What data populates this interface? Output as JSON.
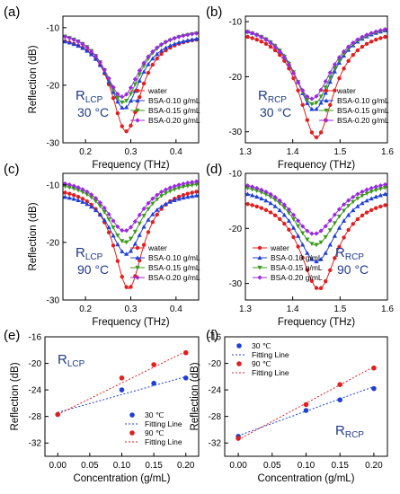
{
  "colors": {
    "red": "#e02020",
    "blue": "#1f3fd6",
    "green": "#3a9a1a",
    "purple": "#9a2ae0",
    "annot": "#1f3a8a"
  },
  "chart_data": [
    {
      "id": "a",
      "panel_label": "(a)",
      "type": "line",
      "xlabel": "Frequency (THz)",
      "ylabel": "Reflection (dB)",
      "xlim": [
        0.15,
        0.45
      ],
      "ylim": [
        -30,
        -8
      ],
      "xticks": [
        0.2,
        0.3,
        0.4
      ],
      "xtick_labels": [
        "0.2",
        "0.3",
        "0.4"
      ],
      "yticks": [
        -30,
        -20,
        -10
      ],
      "ytick_labels": [
        "-30",
        "-20",
        "-10"
      ],
      "annot_main": "R",
      "annot_sub": "LCP",
      "annot_temp": "30 °C",
      "legend_position": "bottom-right",
      "series": [
        {
          "name": "water",
          "color": "red",
          "marker": "circle",
          "f0": 0.29,
          "min": -28,
          "base": -11,
          "w": 0.04,
          "n": 31
        },
        {
          "name": "BSA-0.10 g/mL",
          "color": "blue",
          "marker": "triangle",
          "f0": 0.285,
          "min": -24,
          "base": -11,
          "w": 0.045,
          "n": 31
        },
        {
          "name": "BSA-0.15 g/mL",
          "color": "green",
          "marker": "triangle-down",
          "f0": 0.283,
          "min": -23,
          "base": -10,
          "w": 0.047,
          "n": 31
        },
        {
          "name": "BSA-0.20 g/mL",
          "color": "purple",
          "marker": "diamond",
          "f0": 0.281,
          "min": -22,
          "base": -10,
          "w": 0.049,
          "n": 31
        }
      ]
    },
    {
      "id": "b",
      "panel_label": "(b)",
      "type": "line",
      "xlabel": "Frequency (THz)",
      "ylabel": "",
      "xlim": [
        1.3,
        1.6
      ],
      "ylim": [
        -32,
        -9
      ],
      "xticks": [
        1.3,
        1.4,
        1.5,
        1.6
      ],
      "xtick_labels": [
        "1.3",
        "1.4",
        "1.5",
        "1.6"
      ],
      "yticks": [
        -30,
        -20,
        -10
      ],
      "ytick_labels": [
        "-30",
        "-20",
        "-10"
      ],
      "annot_main": "R",
      "annot_sub": "RCP",
      "annot_temp": "30 °C",
      "legend_position": "bottom-right",
      "series": [
        {
          "name": "water",
          "color": "red",
          "marker": "circle",
          "f0": 1.45,
          "min": -31,
          "base": -11,
          "w": 0.045,
          "n": 31
        },
        {
          "name": "BSA-0.10 g/mL",
          "color": "blue",
          "marker": "triangle",
          "f0": 1.445,
          "min": -26,
          "base": -10,
          "w": 0.05,
          "n": 31
        },
        {
          "name": "BSA-0.15 g/mL",
          "color": "green",
          "marker": "triangle-down",
          "f0": 1.443,
          "min": -25,
          "base": -10,
          "w": 0.052,
          "n": 31
        },
        {
          "name": "BSA-0.20 g/mL",
          "color": "purple",
          "marker": "diamond",
          "f0": 1.44,
          "min": -24,
          "base": -9.8,
          "w": 0.055,
          "n": 31
        }
      ]
    },
    {
      "id": "c",
      "panel_label": "(c)",
      "type": "line",
      "xlabel": "Frequency (THz)",
      "ylabel": "Reflection (dB)",
      "xlim": [
        0.15,
        0.45
      ],
      "ylim": [
        -30,
        -8
      ],
      "xticks": [
        0.2,
        0.3,
        0.4
      ],
      "xtick_labels": [
        "0.2",
        "0.3",
        "0.4"
      ],
      "yticks": [
        -30,
        -20,
        -10
      ],
      "ytick_labels": [
        "-30",
        "-20",
        "-10"
      ],
      "annot_main": "R",
      "annot_sub": "LCP",
      "annot_temp": "90 °C",
      "legend_position": "bottom-right",
      "series": [
        {
          "name": "water",
          "color": "red",
          "marker": "circle",
          "f0": 0.295,
          "min": -28,
          "base": -10,
          "w": 0.04,
          "n": 31
        },
        {
          "name": "BSA-0.10 g/mL",
          "color": "blue",
          "marker": "triangle",
          "f0": 0.29,
          "min": -22,
          "base": -11,
          "w": 0.045,
          "n": 31
        },
        {
          "name": "BSA-0.15 g/mL",
          "color": "green",
          "marker": "triangle-down",
          "f0": 0.288,
          "min": -20,
          "base": -9,
          "w": 0.048,
          "n": 31
        },
        {
          "name": "BSA-0.20 g/mL",
          "color": "purple",
          "marker": "diamond",
          "f0": 0.286,
          "min": -18,
          "base": -8.5,
          "w": 0.052,
          "n": 31
        }
      ]
    },
    {
      "id": "d",
      "panel_label": "(d)",
      "type": "line",
      "xlabel": "Frequency (THz)",
      "ylabel": "",
      "xlim": [
        1.3,
        1.6
      ],
      "ylim": [
        -33,
        -10
      ],
      "xticks": [
        1.3,
        1.4,
        1.5,
        1.6
      ],
      "xtick_labels": [
        "1.3",
        "1.4",
        "1.5",
        "1.6"
      ],
      "yticks": [
        -30,
        -20,
        -10
      ],
      "ytick_labels": [
        "-30",
        "-20",
        "-10"
      ],
      "annot_main": "R",
      "annot_sub": "RCP",
      "annot_temp": "90 °C",
      "legend_position": "bottom-left",
      "series": [
        {
          "name": "water",
          "color": "red",
          "marker": "circle",
          "f0": 1.455,
          "min": -31,
          "base": -14,
          "w": 0.048,
          "n": 31
        },
        {
          "name": "BSA-0.10 g/mL",
          "color": "blue",
          "marker": "triangle",
          "f0": 1.45,
          "min": -26,
          "base": -12,
          "w": 0.055,
          "n": 31
        },
        {
          "name": "BSA-0.15 g/mL",
          "color": "green",
          "marker": "triangle-down",
          "f0": 1.448,
          "min": -23,
          "base": -11,
          "w": 0.058,
          "n": 31
        },
        {
          "name": "BSA-0.20 g/mL",
          "color": "purple",
          "marker": "diamond",
          "f0": 1.445,
          "min": -21,
          "base": -10.5,
          "w": 0.062,
          "n": 31
        }
      ]
    },
    {
      "id": "e",
      "panel_label": "(e)",
      "type": "scatter",
      "xlabel": "Concentration (g/mL)",
      "ylabel": "Reflection (dB)",
      "xlim": [
        -0.02,
        0.22
      ],
      "ylim": [
        -34,
        -16
      ],
      "xticks": [
        0,
        0.05,
        0.1,
        0.15,
        0.2
      ],
      "xtick_labels": [
        "0.00",
        "0.05",
        "0.10",
        "0.15",
        "0.20"
      ],
      "yticks": [
        -32,
        -28,
        -24,
        -20,
        -16
      ],
      "ytick_labels": [
        "-32",
        "-28",
        "-24",
        "-20",
        "-16"
      ],
      "annot_main": "R",
      "annot_sub": "LCP",
      "annot_temp": "",
      "legend_position": "bottom-right",
      "legend_labels": [
        "30 ℃",
        "Fitting Line",
        "90 ℃",
        "Fitting Line"
      ],
      "series": [
        {
          "name": "30 ℃",
          "color": "blue",
          "x": [
            0,
            0.1,
            0.15,
            0.2
          ],
          "y": [
            -27.7,
            -24,
            -23,
            -22.2
          ],
          "fit": [
            -27.4,
            -22
          ]
        },
        {
          "name": "90 ℃",
          "color": "red",
          "x": [
            0,
            0.1,
            0.15,
            0.2
          ],
          "y": [
            -27.7,
            -22.2,
            -20.2,
            -18.4
          ],
          "fit": [
            -27.7,
            -18.2
          ]
        }
      ]
    },
    {
      "id": "f",
      "panel_label": "(f)",
      "type": "scatter",
      "xlabel": "Concentration (g/mL)",
      "ylabel": "Reflection (dB)",
      "xlim": [
        -0.02,
        0.22
      ],
      "ylim": [
        -34,
        -16
      ],
      "xticks": [
        0,
        0.05,
        0.1,
        0.15,
        0.2
      ],
      "xtick_labels": [
        "0.00",
        "0.05",
        "0.10",
        "0.15",
        "0.20"
      ],
      "yticks": [
        -32,
        -28,
        -24,
        -20,
        -16
      ],
      "ytick_labels": [
        "-32",
        "-28",
        "-24",
        "-20",
        "-16"
      ],
      "annot_main": "R",
      "annot_sub": "RCP",
      "annot_temp": "",
      "legend_position": "top-left",
      "legend_labels": [
        "30 ℃",
        "Fitting Line",
        "90 ℃",
        "Fitting Line"
      ],
      "series": [
        {
          "name": "30 ℃",
          "color": "blue",
          "x": [
            0,
            0.1,
            0.15,
            0.2
          ],
          "y": [
            -31,
            -27.1,
            -25.5,
            -23.8
          ],
          "fit": [
            -30.9,
            -23.5
          ]
        },
        {
          "name": "90 ℃",
          "color": "red",
          "x": [
            0,
            0.1,
            0.15,
            0.2
          ],
          "y": [
            -31.3,
            -26.2,
            -23.2,
            -20.7
          ],
          "fit": [
            -31.5,
            -20.5
          ]
        }
      ]
    }
  ]
}
